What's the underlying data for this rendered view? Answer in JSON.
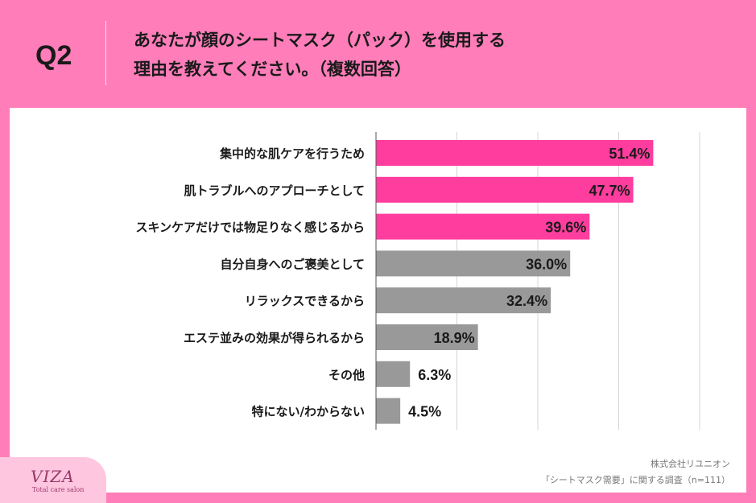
{
  "header": {
    "question_label": "Q2",
    "question_line1": "あなたが顔のシートマスク（パック）を使用する",
    "question_line2": "理由を教えてください。（複数回答）"
  },
  "chart_data": {
    "type": "bar",
    "orientation": "horizontal",
    "categories": [
      "集中的な肌ケアを行うため",
      "肌トラブルへのアプローチとして",
      "スキンケアだけでは物足りなく感じるから",
      "自分自身へのご褒美として",
      "リラックスできるから",
      "エステ並みの効果が得られるから",
      "その他",
      "特にない/わからない"
    ],
    "values": [
      51.4,
      47.7,
      39.6,
      36.0,
      32.4,
      18.9,
      6.3,
      4.5
    ],
    "value_labels": [
      "51.4%",
      "47.7%",
      "39.6%",
      "36.0%",
      "32.4%",
      "18.9%",
      "6.3%",
      "4.5%"
    ],
    "highlight_count": 3,
    "xlim": [
      0,
      60
    ],
    "grid": true,
    "gridline_values": [
      15,
      30,
      45,
      60
    ],
    "colors": {
      "highlight": "#ff3d9e",
      "normal": "#999999"
    }
  },
  "footer": {
    "company": "株式会社リユニオン",
    "survey": "「シートマスク需要」に関する調査（n=111）"
  },
  "logo": {
    "name": "VIZA",
    "tagline": "Total care salon"
  }
}
